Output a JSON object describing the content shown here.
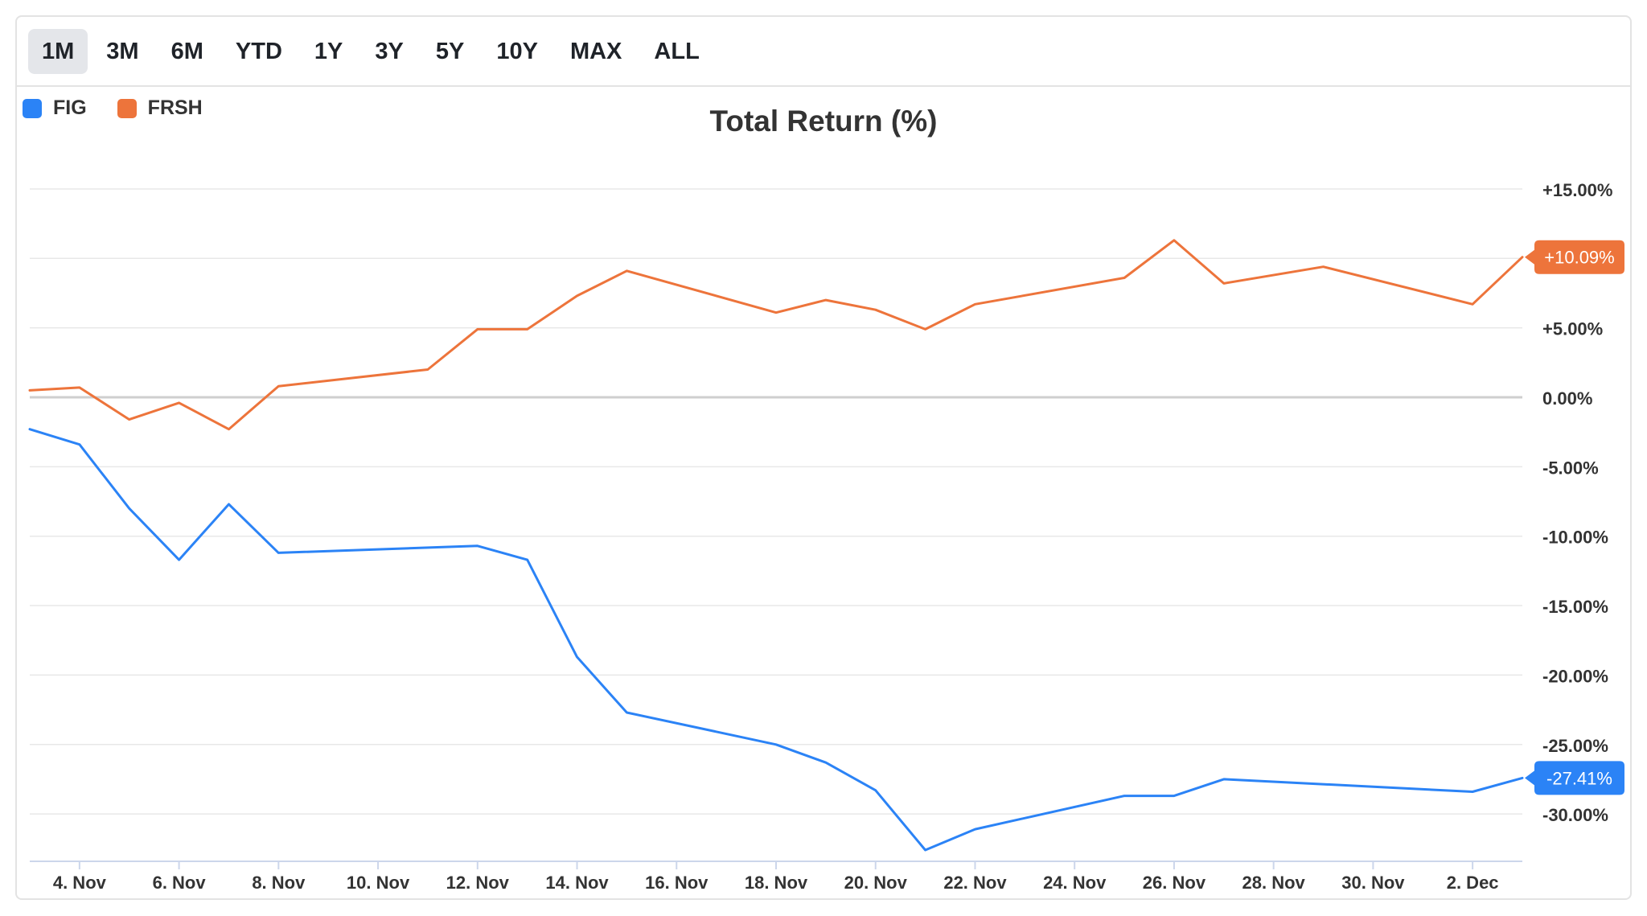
{
  "ranges": {
    "items": [
      "1M",
      "3M",
      "6M",
      "YTD",
      "1Y",
      "3Y",
      "5Y",
      "10Y",
      "MAX",
      "ALL"
    ],
    "active": "1M"
  },
  "chart_data": {
    "type": "line",
    "title": "Total Return (%)",
    "xlabel": "",
    "ylabel": "",
    "y_axis_position": "right",
    "ylim": [
      -33,
      15
    ],
    "y_ticks": [
      15,
      10,
      5,
      0,
      -5,
      -10,
      -15,
      -20,
      -25,
      -30
    ],
    "y_tick_labels": [
      "+15.00%",
      "+10.00%",
      "+5.00%",
      "0.00%",
      "-5.00%",
      "-10.00%",
      "-15.00%",
      "-20.00%",
      "-25.00%",
      "-30.00%"
    ],
    "x_range": [
      "2024-11-03",
      "2024-12-03"
    ],
    "x_ticks": [
      "2024-11-04",
      "2024-11-06",
      "2024-11-08",
      "2024-11-10",
      "2024-11-12",
      "2024-11-14",
      "2024-11-16",
      "2024-11-18",
      "2024-11-20",
      "2024-11-22",
      "2024-11-24",
      "2024-11-26",
      "2024-11-28",
      "2024-11-30",
      "2024-12-02"
    ],
    "x_tick_labels": [
      "4. Nov",
      "6. Nov",
      "8. Nov",
      "10. Nov",
      "12. Nov",
      "14. Nov",
      "16. Nov",
      "18. Nov",
      "20. Nov",
      "22. Nov",
      "24. Nov",
      "26. Nov",
      "28. Nov",
      "30. Nov",
      "2. Dec"
    ],
    "zero_line": true,
    "grid": true,
    "legend_position": "top-left",
    "series": [
      {
        "name": "FIG",
        "color": "#2b83f6",
        "last_label": "-27.41%",
        "points": [
          [
            "2024-11-03",
            -2.3
          ],
          [
            "2024-11-04",
            -3.4
          ],
          [
            "2024-11-05",
            -8.0
          ],
          [
            "2024-11-06",
            -11.7
          ],
          [
            "2024-11-07",
            -7.7
          ],
          [
            "2024-11-08",
            -11.2
          ],
          [
            "2024-11-12",
            -10.7
          ],
          [
            "2024-11-13",
            -11.7
          ],
          [
            "2024-11-14",
            -18.7
          ],
          [
            "2024-11-15",
            -22.7
          ],
          [
            "2024-11-18",
            -25.0
          ],
          [
            "2024-11-19",
            -26.3
          ],
          [
            "2024-11-20",
            -28.3
          ],
          [
            "2024-11-21",
            -32.6
          ],
          [
            "2024-11-22",
            -31.1
          ],
          [
            "2024-11-25",
            -28.7
          ],
          [
            "2024-11-26",
            -28.7
          ],
          [
            "2024-11-27",
            -27.5
          ],
          [
            "2024-12-02",
            -28.4
          ],
          [
            "2024-12-03",
            -27.41
          ]
        ]
      },
      {
        "name": "FRSH",
        "color": "#ed743b",
        "last_label": "+10.09%",
        "points": [
          [
            "2024-11-03",
            0.5
          ],
          [
            "2024-11-04",
            0.7
          ],
          [
            "2024-11-05",
            -1.6
          ],
          [
            "2024-11-06",
            -0.4
          ],
          [
            "2024-11-07",
            -2.3
          ],
          [
            "2024-11-08",
            0.8
          ],
          [
            "2024-11-11",
            2.0
          ],
          [
            "2024-11-12",
            4.9
          ],
          [
            "2024-11-13",
            4.9
          ],
          [
            "2024-11-14",
            7.3
          ],
          [
            "2024-11-15",
            9.1
          ],
          [
            "2024-11-18",
            6.1
          ],
          [
            "2024-11-19",
            7.0
          ],
          [
            "2024-11-20",
            6.3
          ],
          [
            "2024-11-21",
            4.9
          ],
          [
            "2024-11-22",
            6.7
          ],
          [
            "2024-11-25",
            8.6
          ],
          [
            "2024-11-26",
            11.3
          ],
          [
            "2024-11-27",
            8.2
          ],
          [
            "2024-11-29",
            9.4
          ],
          [
            "2024-12-02",
            6.7
          ],
          [
            "2024-12-03",
            10.09
          ]
        ]
      }
    ]
  }
}
